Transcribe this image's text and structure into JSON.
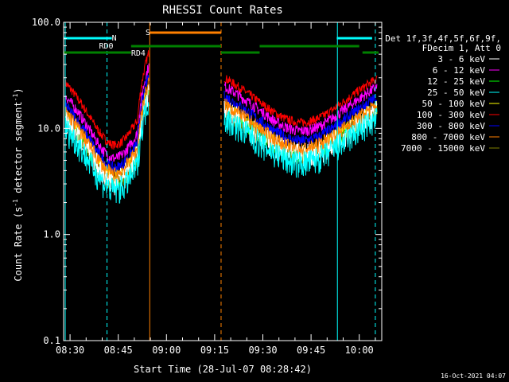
{
  "colors": {
    "background": "#000000",
    "axes": "#ffffff",
    "attenuator": "#00ffff",
    "decimation": "#008000",
    "saa_flag": "#ff8000",
    "night_flag": "#00ffff"
  },
  "chart_data": {
    "type": "line",
    "title": "RHESSI Count Rates",
    "xlabel": "Start Time (28-Jul-07 08:28:42)",
    "ylabel_main": "Count Rate (s",
    "ylabel_sup": "-1",
    "ylabel_mid": " detector segment",
    "ylabel_sup2": "-1",
    "ylabel_end": ")",
    "y_scale": "log",
    "ylim": [
      0.1,
      100
    ],
    "y_ticks": [
      0.1,
      1.0,
      10.0,
      100.0
    ],
    "y_tick_labels": [
      "0.1",
      "1.0",
      "10.0",
      "100.0"
    ],
    "xlim": [
      "08:28",
      "10:07"
    ],
    "x_ticks": [
      "08:30",
      "08:45",
      "09:00",
      "09:15",
      "09:30",
      "09:45",
      "10:00"
    ],
    "legend_header": [
      "Det 1f,3f,4f,5f,6f,9f,",
      "FDecim 1, Att 0"
    ],
    "legend_position": "right",
    "series": [
      {
        "name": "3 - 6 keV",
        "color": "#ffffff"
      },
      {
        "name": "6 - 12 keV",
        "color": "#ff00ff"
      },
      {
        "name": "12 - 25 keV",
        "color": "#00ff00"
      },
      {
        "name": "25 - 50 keV",
        "color": "#00ffff"
      },
      {
        "name": "50 - 100 keV",
        "color": "#ffff00"
      },
      {
        "name": "100 - 300 keV",
        "color": "#ff0000"
      },
      {
        "name": "300 - 800 keV",
        "color": "#0000ff"
      },
      {
        "name": "800 - 7000 keV",
        "color": "#ff8000"
      },
      {
        "name": "7000 - 15000 keV",
        "color": "#808000"
      }
    ],
    "flag_labels": {
      "night": "N",
      "saa": "S",
      "decim0": "RD0",
      "decim4": "RD4"
    },
    "vertical_lines": [
      {
        "time": "08:28.5",
        "style": "solid",
        "color": "#00ffff"
      },
      {
        "time": "08:41.5",
        "style": "dashed",
        "color": "#00ffff"
      },
      {
        "time": "08:54.8",
        "style": "solid",
        "color": "#ff8000"
      },
      {
        "time": "09:17.0",
        "style": "dashed",
        "color": "#ff8000"
      },
      {
        "time": "09:53.2",
        "style": "solid",
        "color": "#00ffff"
      },
      {
        "time": "10:05.0",
        "style": "dashed",
        "color": "#00ffff"
      }
    ],
    "timestamp": "16-Oct-2021 04:07"
  }
}
